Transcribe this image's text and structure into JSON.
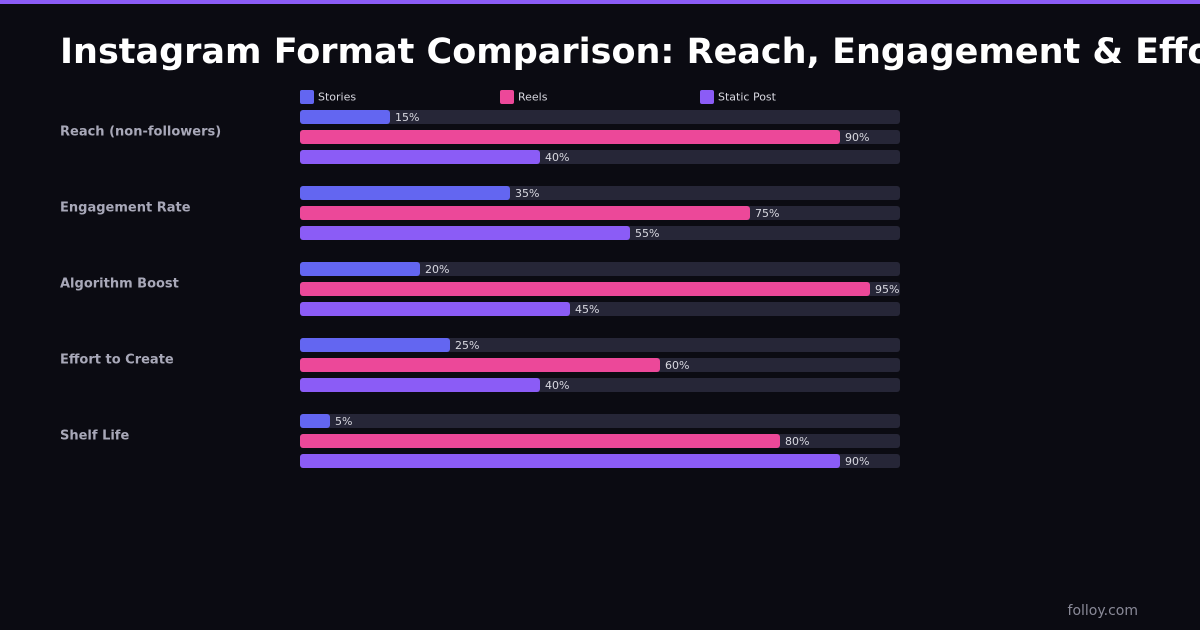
{
  "chart_data": {
    "type": "bar",
    "orientation": "horizontal",
    "title": "Instagram Format Comparison: Reach, Engagement & Effort",
    "categories": [
      "Reach (non-followers)",
      "Engagement Rate",
      "Algorithm Boost",
      "Effort to Create",
      "Shelf Life"
    ],
    "series": [
      {
        "name": "Stories",
        "color": "#6366f1",
        "values": [
          15,
          35,
          20,
          25,
          5
        ],
        "value_labels": [
          "15%",
          "35%",
          "20%",
          "25%",
          "5%"
        ]
      },
      {
        "name": "Reels",
        "color": "#ec4899",
        "values": [
          90,
          75,
          95,
          60,
          80
        ],
        "value_labels": [
          "90%",
          "75%",
          "95%",
          "60%",
          "80%"
        ]
      },
      {
        "name": "Static Post",
        "color": "#8b5cf6",
        "values": [
          40,
          55,
          45,
          40,
          90
        ],
        "value_labels": [
          "40%",
          "55%",
          "45%",
          "40%",
          "90%"
        ]
      }
    ],
    "xlim": [
      0,
      100
    ]
  },
  "footer": "folloy.com"
}
